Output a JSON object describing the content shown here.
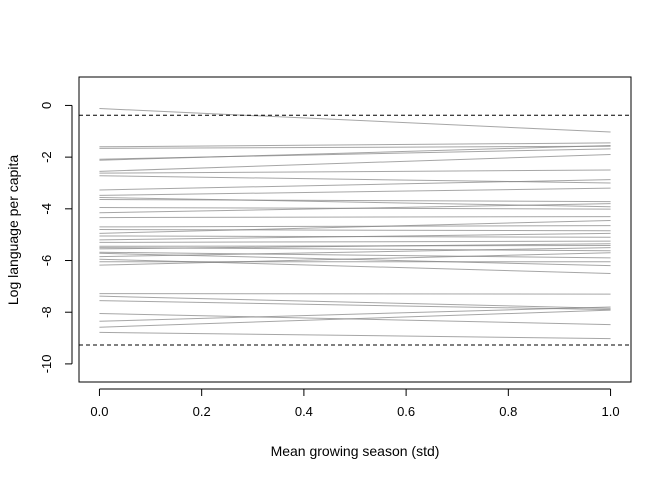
{
  "chart_data": {
    "type": "line",
    "title": "",
    "xlabel": "Mean growing season (std)",
    "ylabel": "Log language per capita",
    "xlim": [
      -0.04,
      1.04
    ],
    "ylim": [
      -10.7,
      1.1
    ],
    "xticks": [
      {
        "value": 0.0,
        "label": "0.0"
      },
      {
        "value": 0.2,
        "label": "0.2"
      },
      {
        "value": 0.4,
        "label": "0.4"
      },
      {
        "value": 0.6,
        "label": "0.6"
      },
      {
        "value": 0.8,
        "label": "0.8"
      },
      {
        "value": 1.0,
        "label": "1.0"
      }
    ],
    "yticks": [
      {
        "value": 0,
        "label": "0"
      },
      {
        "value": -2,
        "label": "-2"
      },
      {
        "value": -4,
        "label": "-4"
      },
      {
        "value": -6,
        "label": "-6"
      },
      {
        "value": -8,
        "label": "-8"
      },
      {
        "value": -10,
        "label": "-10"
      }
    ],
    "grid": false,
    "x": [
      0,
      1
    ],
    "reference_lines": [
      {
        "y": -0.38,
        "style": "dashed"
      },
      {
        "y": -9.27,
        "style": "dashed"
      }
    ],
    "series_color": "#808080",
    "reference_color": "#000000",
    "series": [
      {
        "values": [
          -0.12,
          -1.03
        ]
      },
      {
        "values": [
          -1.6,
          -1.45
        ]
      },
      {
        "values": [
          -1.66,
          -1.58
        ]
      },
      {
        "values": [
          -2.08,
          -1.68
        ]
      },
      {
        "values": [
          -2.12,
          -1.55
        ]
      },
      {
        "values": [
          -2.55,
          -1.9
        ]
      },
      {
        "values": [
          -2.62,
          -2.5
        ]
      },
      {
        "values": [
          -2.72,
          -3.0
        ]
      },
      {
        "values": [
          -3.27,
          -2.87
        ]
      },
      {
        "values": [
          -3.48,
          -3.2
        ]
      },
      {
        "values": [
          -3.56,
          -3.92
        ]
      },
      {
        "values": [
          -3.64,
          -3.72
        ]
      },
      {
        "values": [
          -3.95,
          -4.01
        ]
      },
      {
        "values": [
          -4.15,
          -3.8
        ]
      },
      {
        "values": [
          -4.34,
          -4.3
        ]
      },
      {
        "values": [
          -4.7,
          -4.65
        ]
      },
      {
        "values": [
          -4.8,
          -4.85
        ]
      },
      {
        "values": [
          -4.95,
          -4.45
        ]
      },
      {
        "values": [
          -5.05,
          -5.1
        ]
      },
      {
        "values": [
          -5.2,
          -4.95
        ]
      },
      {
        "values": [
          -5.3,
          -5.25
        ]
      },
      {
        "values": [
          -5.45,
          -5.42
        ]
      },
      {
        "values": [
          -5.5,
          -5.62
        ]
      },
      {
        "values": [
          -5.55,
          -5.35
        ]
      },
      {
        "values": [
          -5.68,
          -5.9
        ]
      },
      {
        "values": [
          -5.72,
          -6.2
        ]
      },
      {
        "values": [
          -5.85,
          -5.5
        ]
      },
      {
        "values": [
          -5.95,
          -6.5
        ]
      },
      {
        "values": [
          -6.05,
          -6.05
        ]
      },
      {
        "values": [
          -6.18,
          -5.7
        ]
      },
      {
        "values": [
          -7.28,
          -7.3
        ]
      },
      {
        "values": [
          -7.38,
          -7.85
        ]
      },
      {
        "values": [
          -7.55,
          -7.9
        ]
      },
      {
        "values": [
          -8.05,
          -8.48
        ]
      },
      {
        "values": [
          -8.35,
          -7.8
        ]
      },
      {
        "values": [
          -8.58,
          -7.92
        ]
      },
      {
        "values": [
          -8.78,
          -9.02
        ]
      }
    ]
  }
}
